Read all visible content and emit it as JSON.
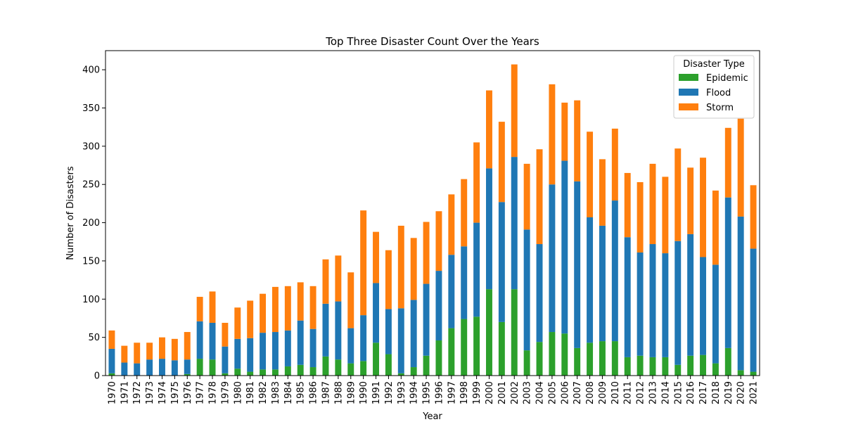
{
  "chart_data": {
    "type": "bar",
    "stacked": true,
    "title": "Top Three Disaster Count Over the Years",
    "xlabel": "Year",
    "ylabel": "Number of Disasters",
    "ylim": [
      0,
      425
    ],
    "yticks": [
      0,
      50,
      100,
      150,
      200,
      250,
      300,
      350,
      400
    ],
    "grid": false,
    "legend": {
      "title": "Disaster Type",
      "placement": "top-right"
    },
    "categories": [
      "1970",
      "1971",
      "1972",
      "1973",
      "1974",
      "1975",
      "1976",
      "1977",
      "1978",
      "1979",
      "1980",
      "1981",
      "1982",
      "1983",
      "1984",
      "1985",
      "1986",
      "1987",
      "1988",
      "1989",
      "1990",
      "1991",
      "1992",
      "1993",
      "1994",
      "1995",
      "1996",
      "1997",
      "1998",
      "1999",
      "2000",
      "2001",
      "2002",
      "2003",
      "2004",
      "2005",
      "2006",
      "2007",
      "2008",
      "2009",
      "2010",
      "2011",
      "2012",
      "2013",
      "2014",
      "2015",
      "2016",
      "2017",
      "2018",
      "2019",
      "2020",
      "2021"
    ],
    "series": [
      {
        "name": "Epidemic",
        "color": "#2ca02c",
        "values": [
          3,
          0,
          0,
          0,
          0,
          0,
          2,
          22,
          21,
          3,
          9,
          5,
          8,
          8,
          12,
          14,
          11,
          25,
          21,
          16,
          19,
          43,
          28,
          3,
          11,
          26,
          46,
          62,
          74,
          77,
          113,
          70,
          113,
          33,
          44,
          57,
          55,
          36,
          43,
          45,
          45,
          24,
          26,
          24,
          24,
          14,
          26,
          27,
          16,
          36,
          7,
          5
        ]
      },
      {
        "name": "Flood",
        "color": "#1f77b4",
        "values": [
          32,
          17,
          16,
          21,
          22,
          20,
          19,
          49,
          48,
          35,
          39,
          44,
          48,
          49,
          47,
          58,
          50,
          69,
          76,
          46,
          60,
          78,
          59,
          85,
          88,
          94,
          91,
          96,
          95,
          123,
          158,
          157,
          173,
          158,
          128,
          193,
          226,
          218,
          164,
          151,
          184,
          157,
          135,
          148,
          136,
          162,
          159,
          128,
          129,
          197,
          201,
          161
        ]
      },
      {
        "name": "Storm",
        "color": "#ff7f0e",
        "values": [
          24,
          22,
          27,
          22,
          28,
          28,
          36,
          32,
          41,
          31,
          41,
          49,
          51,
          59,
          58,
          50,
          56,
          58,
          60,
          73,
          137,
          67,
          77,
          108,
          81,
          81,
          78,
          79,
          88,
          105,
          102,
          105,
          121,
          86,
          124,
          131,
          76,
          106,
          112,
          87,
          94,
          84,
          92,
          105,
          100,
          121,
          87,
          130,
          97,
          91,
          128,
          83
        ]
      }
    ]
  }
}
